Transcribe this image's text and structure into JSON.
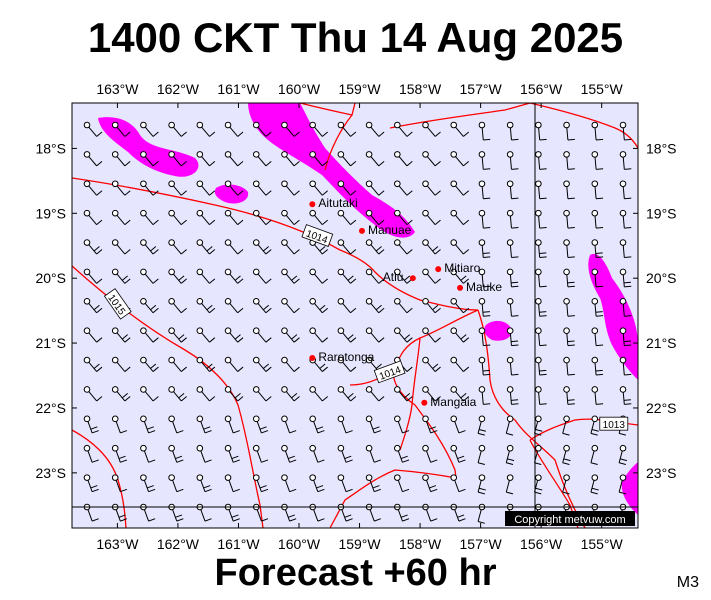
{
  "title": "1400 CKT Thu 14 Aug 2025",
  "footer": "Forecast +60 hr",
  "model": "M3",
  "copyright": "Copyright metvuw.com",
  "map": {
    "lon_min": -163.75,
    "lon_max": -154.4,
    "lat_min": -23.85,
    "lat_max": -17.3,
    "lon_labels": [
      "163°W",
      "162°W",
      "161°W",
      "160°W",
      "159°W",
      "158°W",
      "157°W",
      "156°W",
      "155°W"
    ],
    "lon_values": [
      -163,
      -162,
      -161,
      -160,
      -159,
      -158,
      -157,
      -156,
      -155
    ],
    "lat_labels": [
      "18°S",
      "19°S",
      "20°S",
      "21°S",
      "22°S",
      "23°S"
    ],
    "lat_values": [
      -18,
      -19,
      -20,
      -21,
      -22,
      -23
    ],
    "colors": {
      "ocean": "#e6e6ff",
      "rain": "#ff00ff",
      "isobar": "#ff0000",
      "place_dot": "#ff0000",
      "grid_line": "#000000"
    }
  },
  "places": [
    {
      "name": "Aitutaki",
      "lon": -159.78,
      "lat": -18.86
    },
    {
      "name": "Manuae",
      "lon": -158.96,
      "lat": -19.27
    },
    {
      "name": "Atiu",
      "lon": -158.12,
      "lat": -20.0
    },
    {
      "name": "Mitiaro",
      "lon": -157.7,
      "lat": -19.86
    },
    {
      "name": "Mauke",
      "lon": -157.34,
      "lat": -20.15
    },
    {
      "name": "Rarotonga",
      "lon": -159.78,
      "lat": -21.23
    },
    {
      "name": "Mangaia",
      "lon": -157.93,
      "lat": -21.92
    }
  ],
  "isobar_labels": [
    {
      "text": "1014",
      "lon": -159.7,
      "lat": -19.35
    },
    {
      "text": "1015",
      "lon": -163.0,
      "lat": -20.4
    },
    {
      "text": "1014",
      "lon": -158.5,
      "lat": -21.45
    },
    {
      "text": "1013",
      "lon": -154.8,
      "lat": -22.25
    }
  ]
}
